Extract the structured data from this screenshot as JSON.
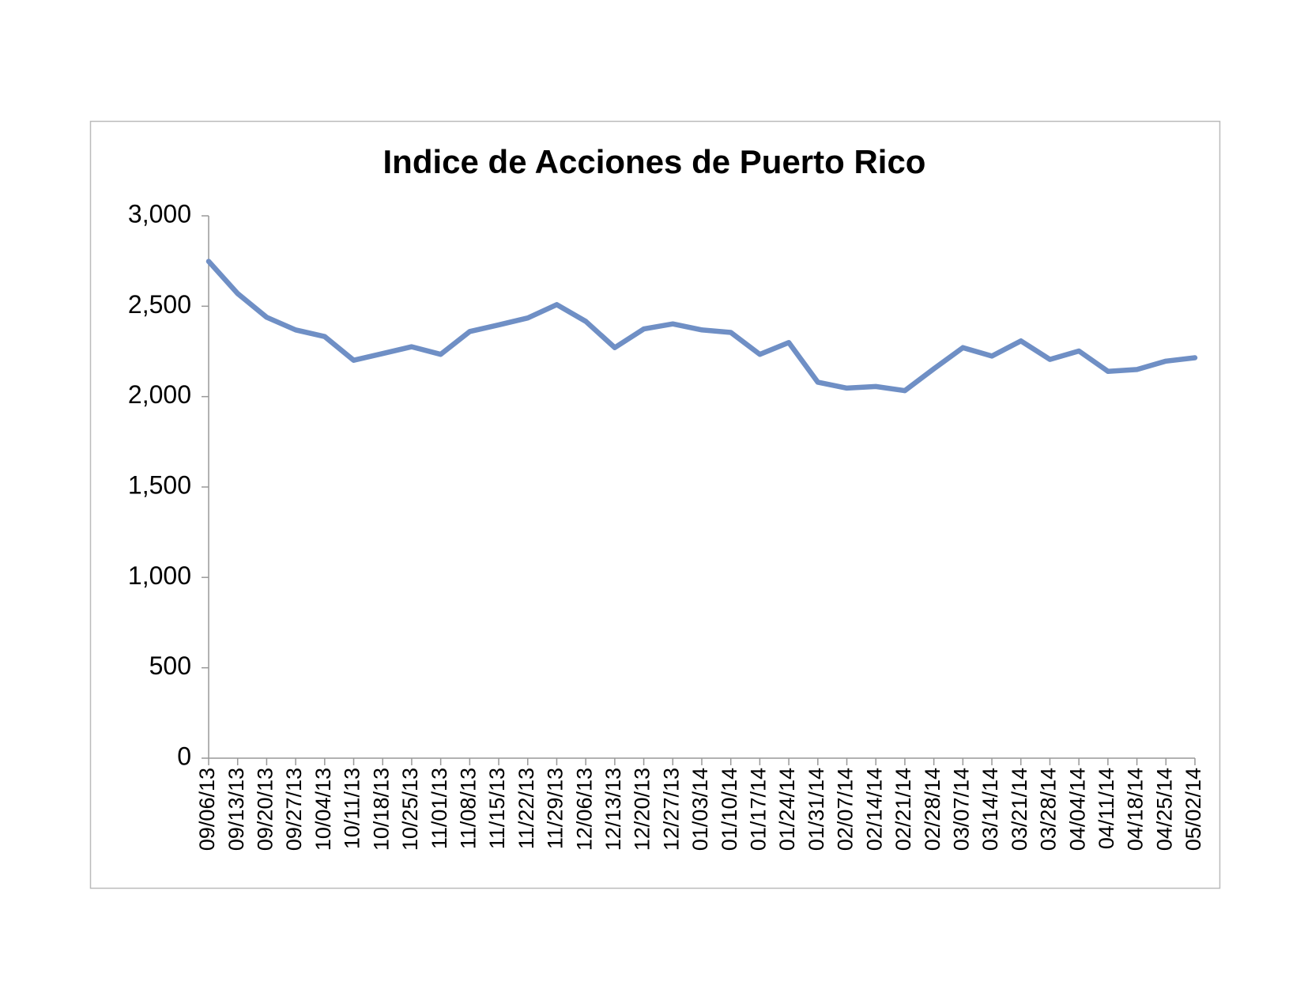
{
  "chart_data": {
    "type": "line",
    "title": "Indice de Acciones de Puerto Rico",
    "categories": [
      "09/06/13",
      "09/13/13",
      "09/20/13",
      "09/27/13",
      "10/04/13",
      "10/11/13",
      "10/18/13",
      "10/25/13",
      "11/01/13",
      "11/08/13",
      "11/15/13",
      "11/22/13",
      "11/29/13",
      "12/06/13",
      "12/13/13",
      "12/20/13",
      "12/27/13",
      "01/03/14",
      "01/10/14",
      "01/17/14",
      "01/24/14",
      "01/31/14",
      "02/07/14",
      "02/14/14",
      "02/21/14",
      "02/28/14",
      "03/07/14",
      "03/14/14",
      "03/21/14",
      "03/28/14",
      "04/04/14",
      "04/11/14",
      "04/18/14",
      "04/25/14",
      "05/02/14"
    ],
    "values": [
      2748,
      2570,
      2439,
      2369,
      2332,
      2201,
      2238,
      2276,
      2234,
      2360,
      2397,
      2435,
      2509,
      2416,
      2271,
      2374,
      2402,
      2369,
      2355,
      2234,
      2299,
      2080,
      2047,
      2056,
      2033,
      2154,
      2271,
      2224,
      2308,
      2206,
      2252,
      2140,
      2150,
      2196,
      2215
    ],
    "color": "#6f8fc5",
    "ylim": [
      0,
      3000
    ],
    "yticks": [
      0,
      500,
      {
        "value": 1000,
        "label": "1,000"
      },
      {
        "value": 1500,
        "label": "1,500"
      },
      {
        "value": 2000,
        "label": "2,000"
      },
      {
        "value": 2500,
        "label": "2,500"
      },
      {
        "value": 3000,
        "label": "3,000"
      }
    ],
    "grid": false
  }
}
